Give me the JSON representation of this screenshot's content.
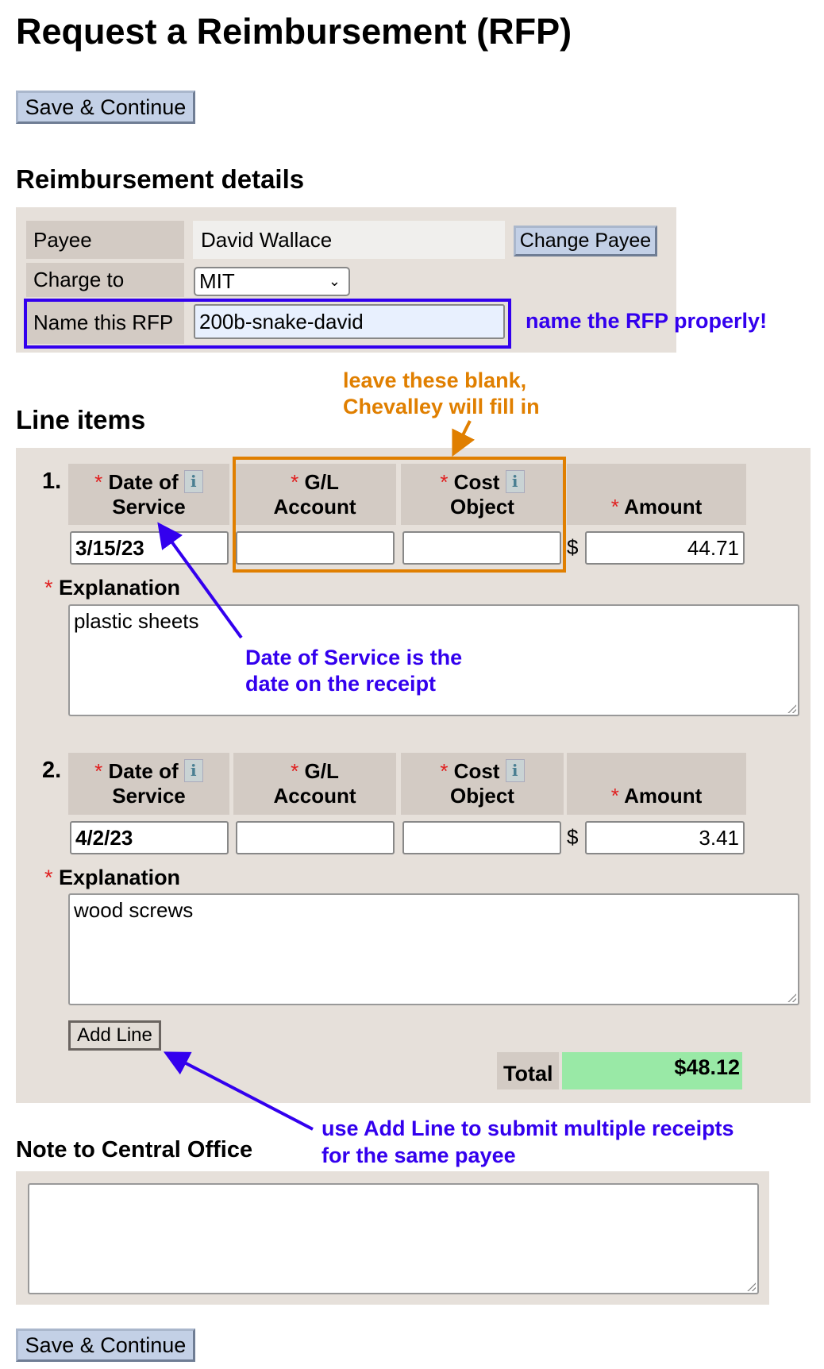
{
  "page_title": "Request a Reimbursement (RFP)",
  "save_continue_label": "Save & Continue",
  "details": {
    "heading": "Reimbursement details",
    "payee_label": "Payee",
    "payee_value": "David Wallace",
    "change_payee_label": "Change Payee",
    "charge_to_label": "Charge to",
    "charge_to_value": "MIT",
    "name_label": "Name this RFP",
    "name_value": "200b-snake-david"
  },
  "line_items": {
    "heading": "Line items",
    "headers": {
      "date_line1": "Date of",
      "date_line2": "Service",
      "gl_line1": "G/L",
      "gl_line2": "Account",
      "cost_line1": "Cost",
      "cost_line2": "Object",
      "amount": "Amount",
      "required_mark": "*",
      "currency": "$"
    },
    "explanation_label": "Explanation",
    "items": [
      {
        "number": "1.",
        "date": "3/15/23",
        "gl_account": "",
        "cost_object": "",
        "amount": "44.71",
        "explanation": "plastic sheets"
      },
      {
        "number": "2.",
        "date": "4/2/23",
        "gl_account": "",
        "cost_object": "",
        "amount": "3.41",
        "explanation": "wood screws"
      }
    ],
    "add_line_label": "Add Line",
    "total_label": "Total",
    "total_value": "$48.12"
  },
  "note": {
    "heading": "Note to Central Office",
    "value": ""
  },
  "annotations": {
    "name_rfp": "name the RFP properly!",
    "leave_blank_line1": "leave these blank,",
    "leave_blank_line2": "Chevalley will fill in",
    "date_service_line1": "Date of Service is the",
    "date_service_line2": "date on the receipt",
    "add_line_line1": "use Add Line to submit multiple receipts",
    "add_line_line2": "for the same payee"
  },
  "colors": {
    "annotation_blue": "#3300ee",
    "annotation_orange": "#e07f00",
    "total_green": "#99e9a6",
    "button_blue": "#c3d0e6"
  }
}
